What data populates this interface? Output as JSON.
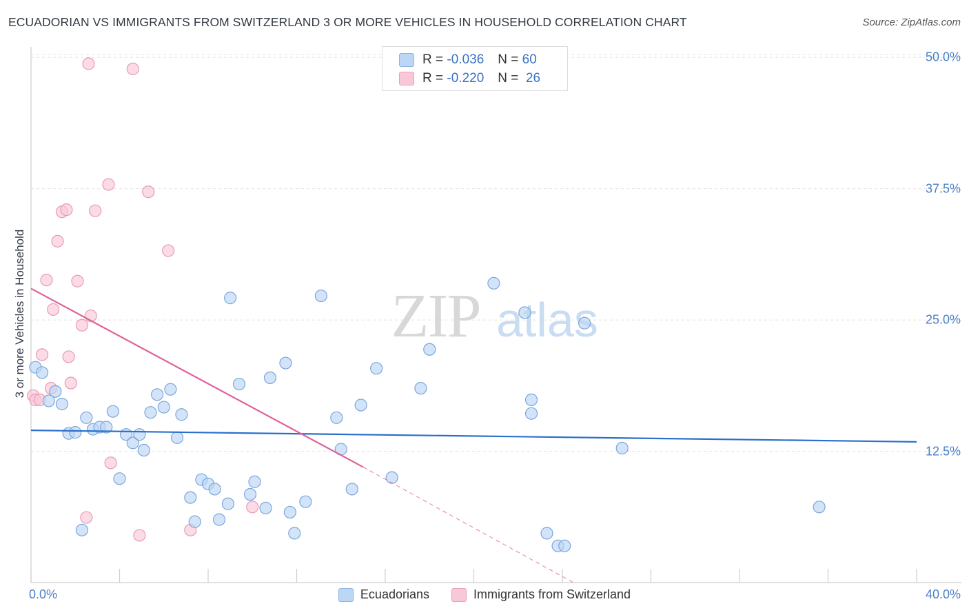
{
  "title": "ECUADORIAN VS IMMIGRANTS FROM SWITZERLAND 3 OR MORE VEHICLES IN HOUSEHOLD CORRELATION CHART",
  "source": "Source: ZipAtlas.com",
  "watermark": {
    "zip": "ZIP",
    "atlas": "atlas"
  },
  "colors": {
    "blue_fill": "#bcd6f5",
    "blue_stroke": "#7aa6dc",
    "blue_line": "#2a6fca",
    "pink_fill": "#f9c8d8",
    "pink_stroke": "#e99ab4",
    "pink_line": "#e0609a",
    "tick_text": "#4a7fc8",
    "grid": "#e2e2e2"
  },
  "legend": {
    "series1": {
      "r_label": "R =",
      "r_value": "-0.036",
      "n_label": "N =",
      "n_value": "60"
    },
    "series2": {
      "r_label": "R =",
      "r_value": "-0.220",
      "n_label": "N =",
      "n_value": "26"
    }
  },
  "chart_data": {
    "type": "scatter",
    "title": "ECUADORIAN VS IMMIGRANTS FROM SWITZERLAND 3 OR MORE VEHICLES IN HOUSEHOLD CORRELATION CHART",
    "xlabel": "",
    "ylabel": "3 or more Vehicles in Household",
    "xlim": [
      0,
      40
    ],
    "ylim": [
      0,
      51
    ],
    "x_tick_labels": [
      {
        "value": 0,
        "label": "0.0%"
      },
      {
        "value": 40,
        "label": "40.0%"
      }
    ],
    "y_tick_labels": [
      {
        "value": 12.5,
        "label": "12.5%"
      },
      {
        "value": 25.0,
        "label": "25.0%"
      },
      {
        "value": 37.5,
        "label": "37.5%"
      },
      {
        "value": 50.0,
        "label": "50.0%"
      }
    ],
    "series": [
      {
        "name": "Ecuadorians",
        "color": "#bcd6f5",
        "points": [
          [
            0.2,
            20.5
          ],
          [
            0.5,
            20.0
          ],
          [
            0.8,
            17.3
          ],
          [
            1.1,
            18.2
          ],
          [
            1.4,
            17.0
          ],
          [
            1.7,
            14.2
          ],
          [
            2.0,
            14.3
          ],
          [
            2.3,
            5.0
          ],
          [
            2.5,
            15.7
          ],
          [
            2.8,
            14.6
          ],
          [
            3.1,
            14.8
          ],
          [
            3.4,
            14.8
          ],
          [
            3.7,
            16.3
          ],
          [
            4.0,
            9.9
          ],
          [
            4.3,
            14.1
          ],
          [
            4.6,
            13.3
          ],
          [
            4.9,
            14.1
          ],
          [
            5.1,
            12.6
          ],
          [
            5.4,
            16.2
          ],
          [
            5.7,
            17.9
          ],
          [
            6.0,
            16.7
          ],
          [
            6.3,
            18.4
          ],
          [
            6.6,
            13.8
          ],
          [
            6.8,
            16.0
          ],
          [
            7.2,
            8.1
          ],
          [
            7.4,
            5.8
          ],
          [
            7.7,
            9.8
          ],
          [
            8.0,
            9.4
          ],
          [
            8.3,
            8.9
          ],
          [
            8.5,
            6.0
          ],
          [
            8.9,
            7.5
          ],
          [
            9.0,
            27.1
          ],
          [
            9.4,
            18.9
          ],
          [
            9.9,
            8.4
          ],
          [
            10.1,
            9.6
          ],
          [
            10.6,
            7.1
          ],
          [
            10.8,
            19.5
          ],
          [
            11.5,
            20.9
          ],
          [
            11.7,
            6.7
          ],
          [
            11.9,
            4.7
          ],
          [
            12.4,
            7.7
          ],
          [
            13.1,
            27.3
          ],
          [
            13.8,
            15.7
          ],
          [
            14.0,
            12.7
          ],
          [
            14.5,
            8.9
          ],
          [
            14.9,
            16.9
          ],
          [
            15.6,
            20.4
          ],
          [
            16.3,
            10.0
          ],
          [
            17.6,
            18.5
          ],
          [
            18.0,
            22.2
          ],
          [
            20.9,
            28.5
          ],
          [
            22.3,
            25.7
          ],
          [
            22.6,
            17.4
          ],
          [
            22.6,
            16.1
          ],
          [
            23.3,
            4.7
          ],
          [
            23.8,
            3.5
          ],
          [
            24.1,
            3.5
          ],
          [
            25.0,
            24.7
          ],
          [
            26.7,
            12.8
          ],
          [
            35.6,
            7.2
          ]
        ],
        "trend": {
          "x": [
            0,
            40
          ],
          "y": [
            14.5,
            13.4
          ]
        }
      },
      {
        "name": "Immigrants from Switzerland",
        "color": "#f9c8d8",
        "points": [
          [
            0.1,
            17.8
          ],
          [
            0.2,
            17.4
          ],
          [
            0.4,
            17.4
          ],
          [
            0.5,
            21.7
          ],
          [
            0.7,
            28.8
          ],
          [
            0.9,
            18.5
          ],
          [
            1.0,
            26.0
          ],
          [
            1.2,
            32.5
          ],
          [
            1.4,
            35.3
          ],
          [
            1.6,
            35.5
          ],
          [
            1.7,
            21.5
          ],
          [
            1.8,
            19.0
          ],
          [
            2.1,
            28.7
          ],
          [
            2.3,
            24.5
          ],
          [
            2.5,
            6.2
          ],
          [
            2.6,
            49.4
          ],
          [
            2.7,
            25.4
          ],
          [
            2.9,
            35.4
          ],
          [
            3.5,
            37.9
          ],
          [
            3.6,
            11.4
          ],
          [
            4.6,
            48.9
          ],
          [
            4.9,
            4.5
          ],
          [
            5.3,
            37.2
          ],
          [
            6.2,
            31.6
          ],
          [
            7.2,
            5.0
          ],
          [
            10.0,
            7.2
          ]
        ],
        "trend": {
          "x": [
            0,
            15.0
          ],
          "y": [
            28.0,
            11.0
          ]
        },
        "trend_dashed": {
          "x": [
            15.0,
            24.5
          ],
          "y": [
            11.0,
            0
          ]
        }
      }
    ]
  },
  "bottom_legend": {
    "series1": "Ecuadorians",
    "series2": "Immigrants from Switzerland"
  }
}
